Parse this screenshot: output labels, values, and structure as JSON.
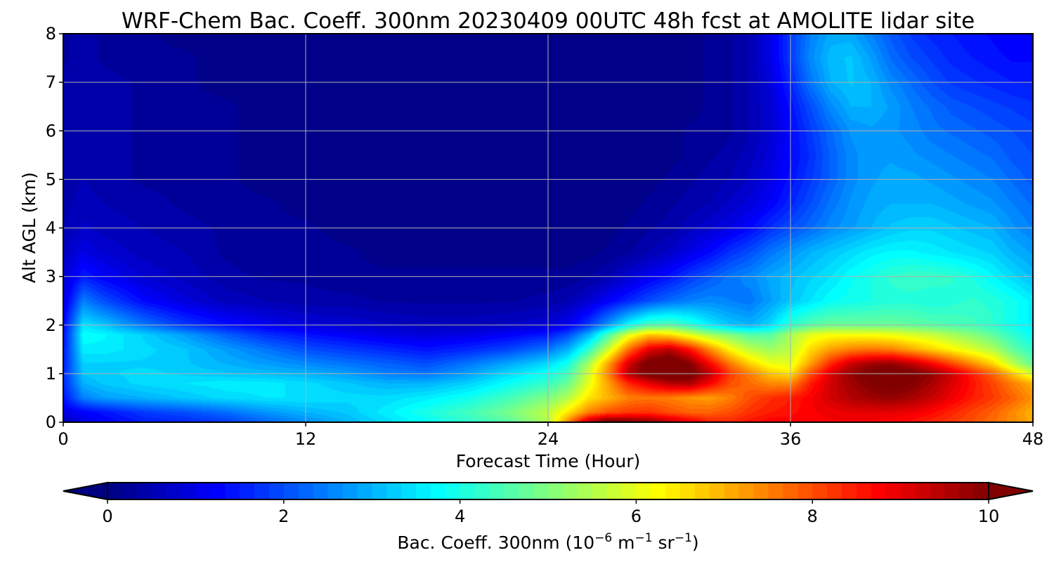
{
  "chart_data": {
    "type": "heatmap",
    "title": "WRF-Chem Bac. Coeff. 300nm  20230409 00UTC 48h fcst at AMOLITE lidar site",
    "xlabel": "Forecast Time (Hour)",
    "ylabel": "Alt AGL (km)",
    "xlim": [
      0,
      48
    ],
    "ylim": [
      0,
      8
    ],
    "xticks": [
      "0",
      "12",
      "24",
      "36",
      "48"
    ],
    "yticks": [
      "0",
      "1",
      "2",
      "3",
      "4",
      "5",
      "6",
      "7",
      "8"
    ],
    "grid": true,
    "colormap": "jet",
    "colorbar": {
      "label_main": "Bac. Coeff. 300nm  (10",
      "label_exp1": "−6",
      "label_mid": " m",
      "label_exp2": "−1",
      "label_mid2": " sr",
      "label_exp3": "−1",
      "label_end": ")",
      "range": [
        0,
        10
      ],
      "ticks": [
        "0",
        "2",
        "4",
        "6",
        "8",
        "10"
      ],
      "extend": "both",
      "levels": 60
    },
    "x": [
      0,
      1,
      2,
      4,
      6,
      8,
      10,
      12,
      14,
      16,
      18,
      20,
      22,
      24,
      25,
      26,
      27,
      28,
      29,
      30,
      31,
      32,
      33,
      34,
      35,
      36,
      37,
      38,
      39,
      40,
      41,
      42,
      43,
      44,
      45,
      46,
      47,
      48
    ],
    "y": [
      0,
      0.2,
      0.5,
      0.8,
      1.0,
      1.2,
      1.5,
      1.8,
      2.0,
      2.5,
      3.0,
      3.5,
      4.0,
      4.5,
      5.0,
      5.5,
      6.0,
      6.5,
      7.0,
      7.5,
      8.0
    ],
    "z": [
      [
        0.5,
        1.0,
        1.2,
        1.5,
        1.6,
        1.8,
        2.2,
        2.6,
        3.0,
        3.4,
        3.8,
        4.2,
        4.6,
        5.5,
        7.5,
        9.5,
        10.5,
        10.2,
        10.0,
        9.5,
        9.0,
        8.5,
        8.4,
        8.6,
        8.8,
        8.8,
        8.8,
        8.8,
        8.8,
        8.8,
        8.7,
        8.6,
        8.4,
        8.2,
        8.0,
        7.7,
        7.4,
        7.1
      ],
      [
        1.0,
        1.2,
        1.4,
        1.8,
        2.0,
        2.3,
        2.7,
        3.0,
        3.2,
        3.6,
        4.0,
        4.4,
        4.9,
        5.6,
        6.5,
        7.5,
        8.0,
        8.2,
        8.3,
        8.0,
        7.8,
        7.8,
        8.0,
        8.3,
        8.5,
        8.6,
        8.8,
        8.9,
        9.0,
        9.0,
        9.0,
        8.9,
        8.7,
        8.4,
        8.1,
        7.8,
        7.4,
        7.0
      ],
      [
        1.4,
        2.5,
        2.8,
        3.0,
        3.2,
        3.4,
        3.5,
        3.5,
        3.4,
        3.4,
        3.6,
        3.9,
        4.4,
        5.0,
        5.5,
        6.5,
        7.0,
        7.5,
        7.6,
        7.5,
        7.3,
        7.2,
        7.5,
        8.0,
        8.3,
        8.5,
        8.8,
        9.2,
        9.5,
        9.7,
        9.8,
        9.6,
        9.3,
        8.9,
        8.5,
        8.2,
        7.8,
        7.3
      ],
      [
        1.6,
        3.0,
        3.2,
        3.4,
        3.5,
        3.6,
        3.6,
        3.4,
        3.2,
        3.0,
        3.0,
        3.3,
        3.8,
        4.3,
        4.8,
        6.0,
        7.2,
        8.4,
        9.0,
        9.5,
        9.6,
        8.8,
        8.0,
        7.7,
        7.4,
        7.4,
        8.5,
        9.2,
        9.7,
        10.0,
        10.2,
        10.0,
        9.6,
        9.1,
        8.6,
        8.1,
        7.5,
        7.0
      ],
      [
        1.6,
        3.2,
        3.3,
        3.4,
        3.3,
        3.2,
        3.1,
        3.0,
        2.8,
        2.5,
        2.4,
        2.8,
        3.4,
        3.9,
        4.4,
        5.8,
        7.5,
        9.5,
        10.2,
        10.5,
        10.3,
        9.4,
        8.2,
        7.5,
        6.8,
        6.5,
        8.0,
        9.1,
        9.8,
        10.2,
        10.4,
        10.2,
        9.8,
        9.2,
        8.5,
        7.8,
        6.8,
        5.8
      ],
      [
        1.5,
        3.3,
        3.3,
        3.3,
        3.2,
        3.0,
        2.8,
        2.6,
        2.4,
        2.2,
        2.0,
        2.4,
        2.9,
        3.4,
        4.0,
        5.4,
        7.2,
        9.2,
        10.3,
        10.6,
        10.0,
        8.8,
        7.6,
        6.7,
        6.1,
        6.0,
        7.2,
        8.4,
        9.3,
        9.7,
        9.8,
        9.4,
        8.8,
        8.1,
        7.4,
        6.7,
        5.6,
        4.7
      ],
      [
        1.4,
        3.6,
        3.6,
        3.4,
        3.2,
        2.8,
        2.4,
        2.0,
        1.8,
        1.6,
        1.4,
        1.6,
        1.9,
        2.4,
        3.0,
        4.2,
        5.8,
        7.7,
        9.0,
        9.4,
        8.6,
        7.4,
        6.3,
        5.6,
        5.3,
        5.6,
        6.6,
        7.2,
        7.5,
        7.6,
        7.5,
        7.1,
        6.7,
        6.3,
        5.9,
        5.5,
        4.7,
        4.2
      ],
      [
        1.3,
        3.8,
        3.7,
        3.3,
        2.8,
        2.2,
        1.7,
        1.4,
        1.2,
        1.0,
        0.9,
        1.0,
        1.2,
        1.5,
        2.0,
        3.0,
        4.5,
        6.0,
        6.8,
        6.6,
        6.0,
        5.4,
        5.0,
        4.6,
        4.6,
        5.4,
        6.0,
        6.2,
        6.2,
        6.2,
        6.1,
        5.9,
        5.7,
        5.4,
        5.1,
        4.7,
        4.2,
        3.8
      ],
      [
        1.2,
        3.5,
        3.2,
        2.4,
        1.8,
        1.4,
        1.1,
        0.9,
        0.8,
        0.7,
        0.6,
        0.6,
        0.7,
        0.8,
        1.1,
        1.8,
        2.8,
        3.8,
        4.5,
        4.6,
        4.2,
        3.6,
        3.2,
        3.0,
        3.4,
        4.2,
        4.6,
        4.8,
        4.8,
        4.8,
        4.8,
        4.7,
        4.6,
        4.5,
        4.4,
        4.2,
        3.9,
        3.6
      ],
      [
        0.9,
        2.5,
        2.0,
        1.3,
        0.9,
        0.6,
        0.5,
        0.4,
        0.4,
        0.3,
        0.3,
        0.3,
        0.3,
        0.4,
        0.5,
        0.8,
        1.2,
        1.6,
        2.0,
        2.3,
        2.5,
        2.6,
        2.5,
        2.4,
        2.8,
        3.2,
        3.5,
        3.8,
        3.9,
        4.0,
        4.1,
        4.1,
        4.0,
        4.1,
        4.2,
        4.1,
        3.9,
        3.6
      ],
      [
        0.8,
        1.5,
        1.2,
        0.8,
        0.6,
        0.4,
        0.3,
        0.3,
        0.2,
        0.2,
        0.2,
        0.2,
        0.2,
        0.2,
        0.2,
        0.3,
        0.5,
        0.8,
        1.1,
        1.4,
        1.8,
        2.1,
        2.4,
        2.6,
        2.9,
        3.1,
        3.3,
        3.5,
        3.8,
        4.0,
        4.2,
        4.3,
        4.3,
        4.2,
        4.0,
        3.7,
        3.4,
        3.1
      ],
      [
        0.6,
        1.0,
        0.8,
        0.6,
        0.5,
        0.3,
        0.2,
        0.2,
        0.2,
        0.1,
        0.1,
        0.1,
        0.1,
        0.1,
        0.1,
        0.1,
        0.2,
        0.3,
        0.5,
        0.7,
        1.0,
        1.3,
        1.7,
        2.0,
        2.4,
        2.7,
        3.0,
        3.2,
        3.4,
        3.6,
        3.7,
        3.7,
        3.6,
        3.5,
        3.4,
        3.3,
        3.0,
        2.8
      ],
      [
        0.5,
        0.7,
        0.6,
        0.5,
        0.4,
        0.3,
        0.2,
        0.2,
        0.1,
        0.1,
        0.1,
        0.1,
        0.1,
        0.1,
        0.1,
        0.1,
        0.1,
        0.2,
        0.3,
        0.4,
        0.6,
        0.8,
        1.0,
        1.3,
        1.7,
        2.0,
        2.3,
        2.6,
        2.8,
        3.0,
        3.2,
        3.3,
        3.3,
        3.2,
        3.1,
        3.0,
        2.7,
        2.5
      ],
      [
        0.4,
        0.6,
        0.5,
        0.4,
        0.3,
        0.2,
        0.2,
        0.1,
        0.1,
        0.1,
        0.1,
        0.1,
        0.1,
        0.1,
        0.1,
        0.1,
        0.1,
        0.1,
        0.2,
        0.3,
        0.4,
        0.5,
        0.7,
        0.9,
        1.2,
        1.6,
        2.0,
        2.4,
        2.7,
        2.9,
        3.0,
        3.0,
        3.0,
        2.9,
        2.8,
        2.7,
        2.5,
        2.3
      ],
      [
        0.4,
        0.5,
        0.4,
        0.3,
        0.3,
        0.2,
        0.1,
        0.1,
        0.1,
        0.1,
        0.1,
        0.1,
        0.1,
        0.1,
        0.1,
        0.1,
        0.1,
        0.1,
        0.1,
        0.2,
        0.3,
        0.4,
        0.5,
        0.7,
        1.0,
        1.4,
        1.8,
        2.2,
        2.6,
        2.8,
        2.9,
        2.9,
        2.8,
        2.7,
        2.6,
        2.5,
        2.3,
        2.1
      ],
      [
        0.4,
        0.5,
        0.4,
        0.3,
        0.2,
        0.2,
        0.1,
        0.1,
        0.1,
        0.1,
        0.1,
        0.1,
        0.1,
        0.1,
        0.1,
        0.1,
        0.1,
        0.1,
        0.1,
        0.1,
        0.2,
        0.3,
        0.4,
        0.6,
        0.9,
        1.3,
        1.7,
        2.2,
        2.6,
        2.8,
        2.8,
        2.7,
        2.6,
        2.5,
        2.4,
        2.3,
        2.1,
        2.0
      ],
      [
        0.4,
        0.5,
        0.4,
        0.3,
        0.2,
        0.2,
        0.1,
        0.1,
        0.1,
        0.1,
        0.1,
        0.1,
        0.1,
        0.1,
        0.1,
        0.1,
        0.1,
        0.1,
        0.1,
        0.1,
        0.2,
        0.2,
        0.3,
        0.5,
        0.8,
        1.3,
        1.8,
        2.3,
        2.7,
        2.8,
        2.7,
        2.6,
        2.4,
        2.3,
        2.2,
        2.1,
        2.0,
        1.9
      ],
      [
        0.4,
        0.5,
        0.4,
        0.3,
        0.2,
        0.2,
        0.1,
        0.1,
        0.1,
        0.1,
        0.1,
        0.1,
        0.1,
        0.1,
        0.1,
        0.1,
        0.1,
        0.1,
        0.1,
        0.1,
        0.1,
        0.2,
        0.3,
        0.5,
        0.8,
        1.4,
        2.0,
        2.6,
        3.0,
        3.0,
        2.8,
        2.5,
        2.3,
        2.1,
        2.0,
        1.9,
        1.8,
        1.7
      ],
      [
        0.4,
        0.5,
        0.4,
        0.3,
        0.2,
        0.1,
        0.1,
        0.1,
        0.1,
        0.1,
        0.1,
        0.1,
        0.1,
        0.1,
        0.1,
        0.1,
        0.1,
        0.1,
        0.1,
        0.1,
        0.1,
        0.2,
        0.3,
        0.5,
        0.9,
        1.6,
        2.4,
        3.0,
        3.2,
        3.0,
        2.6,
        2.3,
        2.0,
        1.8,
        1.7,
        1.6,
        1.5,
        1.5
      ],
      [
        0.3,
        0.4,
        0.3,
        0.2,
        0.2,
        0.1,
        0.1,
        0.1,
        0.1,
        0.1,
        0.1,
        0.1,
        0.1,
        0.1,
        0.1,
        0.1,
        0.1,
        0.1,
        0.1,
        0.1,
        0.1,
        0.2,
        0.3,
        0.5,
        1.0,
        1.8,
        2.6,
        3.1,
        3.2,
        2.8,
        2.3,
        2.0,
        1.8,
        1.6,
        1.5,
        1.4,
        1.3,
        1.3
      ],
      [
        0.3,
        0.4,
        0.3,
        0.2,
        0.1,
        0.1,
        0.1,
        0.1,
        0.1,
        0.1,
        0.1,
        0.1,
        0.1,
        0.1,
        0.1,
        0.1,
        0.1,
        0.1,
        0.1,
        0.1,
        0.1,
        0.2,
        0.3,
        0.5,
        1.0,
        1.8,
        2.5,
        2.9,
        2.9,
        2.5,
        2.1,
        1.8,
        1.6,
        1.5,
        1.4,
        1.3,
        1.2,
        1.2
      ]
    ]
  }
}
